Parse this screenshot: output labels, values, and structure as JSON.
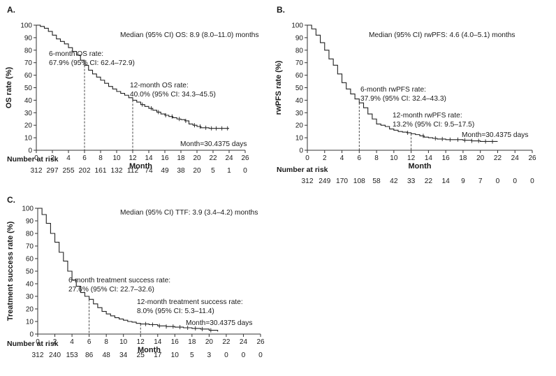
{
  "chart_data": [
    {
      "type": "line",
      "panel": "A.",
      "title": "",
      "xlabel": "Month",
      "ylabel": "OS rate (%)",
      "xlim": [
        0,
        26
      ],
      "ylim": [
        0,
        100
      ],
      "x_ticks": [
        0,
        2,
        4,
        6,
        8,
        10,
        12,
        14,
        16,
        18,
        20,
        22,
        24,
        26
      ],
      "y_ticks": [
        0,
        10,
        20,
        30,
        40,
        50,
        60,
        70,
        80,
        90,
        100
      ],
      "series": [
        {
          "name": "OS",
          "x": [
            0,
            0.5,
            1,
            1.5,
            2,
            2.5,
            3,
            3.5,
            4,
            4.5,
            5,
            5.5,
            6,
            6.5,
            7,
            7.5,
            8,
            8.5,
            9,
            9.5,
            10,
            10.5,
            11,
            11.5,
            12,
            12.5,
            13,
            13.5,
            14,
            14.5,
            15,
            15.5,
            16,
            16.5,
            17,
            17.5,
            18,
            18.5,
            19,
            19.5,
            20,
            20.5,
            21,
            21.5,
            22,
            22.5,
            23,
            23.5,
            24
          ],
          "y": [
            100,
            99,
            97.5,
            95,
            92,
            89,
            87,
            85,
            82,
            79,
            76,
            72,
            67.9,
            64,
            61,
            58.5,
            56,
            53.5,
            51,
            49,
            47,
            45.5,
            44,
            42,
            40,
            38.5,
            36.5,
            35,
            33.5,
            32,
            30.5,
            29,
            28,
            27,
            26,
            25,
            24.5,
            23.5,
            21,
            20,
            19,
            18,
            18,
            17.5,
            17.5,
            17.5,
            17.5,
            17.5,
            17.5
          ]
        }
      ],
      "censor_x": [
        13.2,
        14.3,
        15.2,
        16.1,
        16.9,
        17.8,
        18.6,
        19.7,
        20.4,
        21.1,
        21.8,
        22.4,
        23.1,
        23.8
      ],
      "reference_lines": [
        {
          "x": 6,
          "y": 67.9
        },
        {
          "x": 12,
          "y": 40.0
        }
      ],
      "annotations": {
        "median": "Median (95% CI) OS: 8.9 (8.0–11.0) months",
        "six_month_line1": "6-month OS rate:",
        "six_month_line2": "67.9% (95% CI: 62.4–72.9)",
        "twelve_month_line1": "12-month OS rate:",
        "twelve_month_line2": "40.0% (95% CI: 34.3–45.5)",
        "month_def": "Month=30.4375 days"
      },
      "risk_table": {
        "title": "Number at risk",
        "months": [
          0,
          2,
          4,
          6,
          8,
          10,
          12,
          14,
          16,
          18,
          20,
          22,
          24,
          26
        ],
        "values": [
          "312",
          "297",
          "255",
          "202",
          "161",
          "132",
          "112",
          "74",
          "49",
          "38",
          "20",
          "5",
          "1",
          "0"
        ]
      }
    },
    {
      "type": "line",
      "panel": "B.",
      "title": "",
      "xlabel": "Month",
      "ylabel": "rwPFS rate (%)",
      "xlim": [
        0,
        26
      ],
      "ylim": [
        0,
        100
      ],
      "x_ticks": [
        0,
        2,
        4,
        6,
        8,
        10,
        12,
        14,
        16,
        18,
        20,
        22,
        24,
        26
      ],
      "y_ticks": [
        0,
        10,
        20,
        30,
        40,
        50,
        60,
        70,
        80,
        90,
        100
      ],
      "series": [
        {
          "name": "rwPFS",
          "x": [
            0,
            0.5,
            1,
            1.5,
            2,
            2.5,
            3,
            3.5,
            4,
            4.5,
            5,
            5.5,
            6,
            6.5,
            7,
            7.5,
            8,
            8.5,
            9,
            9.5,
            10,
            10.5,
            11,
            11.5,
            12,
            12.5,
            13,
            13.5,
            14,
            14.5,
            15,
            16,
            17,
            18,
            19,
            20,
            21,
            22
          ],
          "y": [
            100,
            97,
            92,
            86,
            80,
            73,
            68,
            61,
            54,
            49,
            45,
            41,
            37.9,
            34,
            29,
            25,
            21,
            20,
            19,
            17,
            16,
            15,
            14.5,
            14,
            13.2,
            12.5,
            11.5,
            10.5,
            10,
            9.5,
            9,
            8.5,
            8.5,
            8,
            7.5,
            7,
            7,
            7
          ]
        }
      ],
      "censor_x": [
        11.6,
        13.4,
        14.8,
        15.6,
        16.5,
        17.4,
        18.2,
        19.0,
        19.8,
        20.6,
        21.4
      ],
      "reference_lines": [
        {
          "x": 6,
          "y": 37.9
        },
        {
          "x": 12,
          "y": 13.2
        }
      ],
      "annotations": {
        "median": "Median (95% CI) rwPFS: 4.6 (4.0–5.1) months",
        "six_month_line1": "6-month rwPFS rate:",
        "six_month_line2": "37.9% (95% CI: 32.4–43.3)",
        "twelve_month_line1": "12-month rwPFS rate:",
        "twelve_month_line2": "13.2% (95% CI: 9.5–17.5)",
        "month_def": "Month=30.4375 days"
      },
      "risk_table": {
        "title": "Number at risk",
        "months": [
          0,
          2,
          4,
          6,
          8,
          10,
          12,
          14,
          16,
          18,
          20,
          22,
          24,
          26
        ],
        "values": [
          "312",
          "249",
          "170",
          "108",
          "58",
          "42",
          "33",
          "22",
          "14",
          "9",
          "7",
          "0",
          "0",
          "0"
        ]
      }
    },
    {
      "type": "line",
      "panel": "C.",
      "title": "",
      "xlabel": "Month",
      "ylabel": "Treatment success rate (%)",
      "xlim": [
        0,
        26
      ],
      "ylim": [
        0,
        100
      ],
      "x_ticks": [
        0,
        2,
        4,
        6,
        8,
        10,
        12,
        14,
        16,
        18,
        20,
        22,
        24,
        26
      ],
      "y_ticks": [
        0,
        10,
        20,
        30,
        40,
        50,
        60,
        70,
        80,
        90,
        100
      ],
      "series": [
        {
          "name": "TTF",
          "x": [
            0,
            0.5,
            1,
            1.5,
            2,
            2.5,
            3,
            3.5,
            4,
            4.5,
            5,
            5.5,
            6,
            6.5,
            7,
            7.5,
            8,
            8.5,
            9,
            9.5,
            10,
            10.5,
            11,
            11.5,
            12,
            13,
            14,
            15,
            16,
            17,
            18,
            19,
            20,
            21
          ],
          "y": [
            100,
            95,
            88,
            80,
            73,
            65,
            58,
            50,
            43,
            38,
            33,
            30,
            27.6,
            24,
            21,
            18,
            16,
            14.5,
            13,
            12,
            11,
            10,
            9.5,
            8.5,
            8.0,
            7.5,
            6.5,
            6,
            5.5,
            5,
            4.5,
            4,
            3,
            2
          ]
        }
      ],
      "censor_x": [
        12.6,
        13.4,
        14.2,
        15.0,
        15.8,
        16.6,
        17.5,
        18.4,
        19.2,
        20.2
      ],
      "reference_lines": [
        {
          "x": 6,
          "y": 27.6
        },
        {
          "x": 12,
          "y": 8.0
        }
      ],
      "annotations": {
        "median": "Median (95% CI) TTF: 3.9 (3.4–4.2) months",
        "six_month_line1": "6-month treatment success rate:",
        "six_month_line2": "27.6% (95% CI: 22.7–32.6)",
        "twelve_month_line1": "12-month treatment success rate:",
        "twelve_month_line2": "8.0% (95% CI: 5.3–11.4)",
        "month_def": "Month=30.4375 days"
      },
      "risk_table": {
        "title": "Number at risk",
        "months": [
          0,
          2,
          4,
          6,
          8,
          10,
          12,
          14,
          16,
          18,
          20,
          22,
          24,
          26
        ],
        "values": [
          "312",
          "240",
          "153",
          "86",
          "48",
          "34",
          "25",
          "17",
          "10",
          "5",
          "3",
          "0",
          "0",
          "0"
        ]
      }
    }
  ]
}
